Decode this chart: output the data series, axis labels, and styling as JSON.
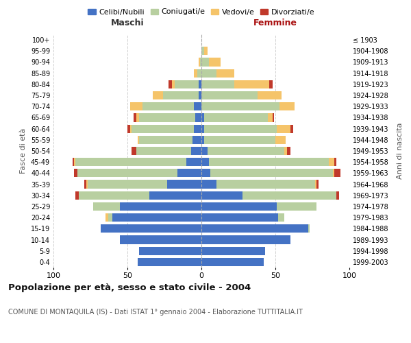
{
  "age_groups": [
    "0-4",
    "5-9",
    "10-14",
    "15-19",
    "20-24",
    "25-29",
    "30-34",
    "35-39",
    "40-44",
    "45-49",
    "50-54",
    "55-59",
    "60-64",
    "65-69",
    "70-74",
    "75-79",
    "80-84",
    "85-89",
    "90-94",
    "95-99",
    "100+"
  ],
  "birth_years": [
    "1999-2003",
    "1994-1998",
    "1989-1993",
    "1984-1988",
    "1979-1983",
    "1974-1978",
    "1969-1973",
    "1964-1968",
    "1959-1963",
    "1954-1958",
    "1949-1953",
    "1944-1948",
    "1939-1943",
    "1934-1938",
    "1929-1933",
    "1924-1928",
    "1919-1923",
    "1914-1918",
    "1909-1913",
    "1904-1908",
    "≤ 1903"
  ],
  "colors": {
    "celibe": "#4472c4",
    "coniugato": "#b8cfa0",
    "vedovo": "#f5c46a",
    "divorziato": "#c0392b"
  },
  "maschi": {
    "celibe": [
      43,
      42,
      55,
      68,
      60,
      55,
      35,
      23,
      16,
      10,
      7,
      6,
      5,
      4,
      5,
      2,
      2,
      0,
      0,
      0,
      0
    ],
    "coniugato": [
      0,
      0,
      0,
      0,
      3,
      18,
      48,
      54,
      68,
      75,
      37,
      36,
      42,
      38,
      35,
      24,
      16,
      3,
      1,
      0,
      0
    ],
    "vedovo": [
      0,
      0,
      0,
      0,
      2,
      0,
      0,
      1,
      0,
      1,
      0,
      1,
      1,
      2,
      8,
      7,
      2,
      2,
      1,
      0,
      0
    ],
    "divorziato": [
      0,
      0,
      0,
      0,
      0,
      0,
      2,
      1,
      2,
      1,
      3,
      0,
      2,
      2,
      0,
      0,
      2,
      0,
      0,
      0,
      0
    ]
  },
  "femmine": {
    "celibe": [
      42,
      43,
      60,
      72,
      52,
      51,
      28,
      10,
      6,
      5,
      4,
      2,
      2,
      2,
      0,
      0,
      0,
      0,
      0,
      0,
      0
    ],
    "coniugato": [
      0,
      0,
      0,
      1,
      4,
      27,
      63,
      67,
      83,
      81,
      52,
      48,
      49,
      43,
      53,
      38,
      22,
      10,
      5,
      2,
      0
    ],
    "vedovo": [
      0,
      0,
      0,
      0,
      0,
      0,
      0,
      1,
      1,
      4,
      2,
      7,
      9,
      3,
      10,
      16,
      24,
      12,
      8,
      2,
      0
    ],
    "divorziato": [
      0,
      0,
      0,
      0,
      0,
      0,
      2,
      1,
      4,
      1,
      2,
      0,
      2,
      1,
      0,
      0,
      2,
      0,
      0,
      0,
      0
    ]
  },
  "title": "Popolazione per età, sesso e stato civile - 2004",
  "subtitle": "COMUNE DI MONTAQUILA (IS) - Dati ISTAT 1° gennaio 2004 - Elaborazione TUTTITALIA.IT",
  "xlabel_left": "Maschi",
  "xlabel_right": "Femmine",
  "ylabel_left": "Fasce di età",
  "ylabel_right": "Anni di nascita",
  "xlim": 100,
  "legend_labels": [
    "Celibi/Nubili",
    "Coniugati/e",
    "Vedovi/e",
    "Divorziati/e"
  ],
  "bg_color": "#ffffff",
  "grid_color": "#cccccc",
  "bar_height": 0.75
}
